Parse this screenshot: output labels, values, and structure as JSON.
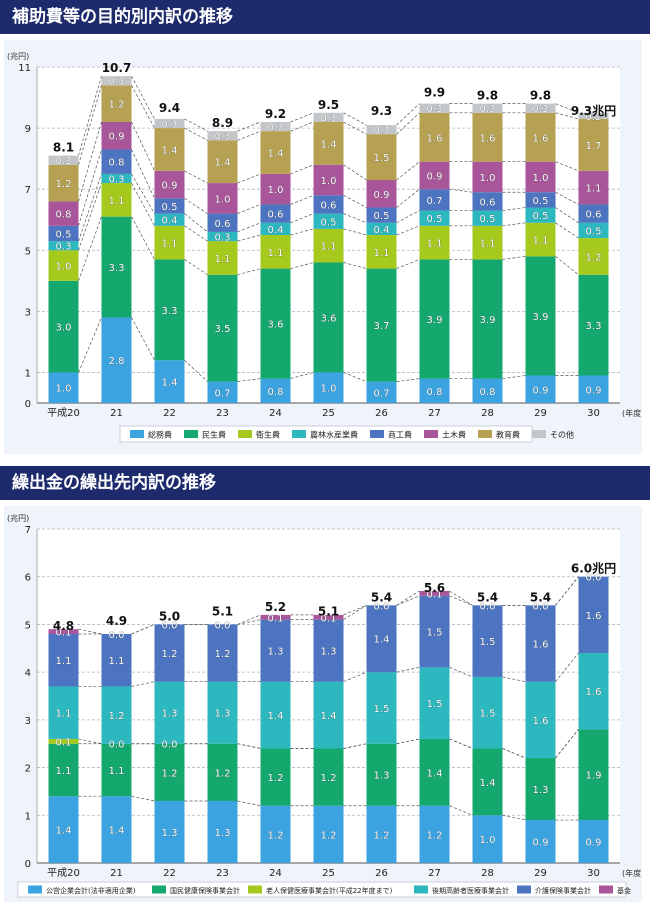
{
  "chart_data": [
    {
      "type": "bar",
      "title": "補助費等の目的別内訳の推移",
      "unit_label": "(兆円)",
      "x_unit_label": "(年度)",
      "ylim": [
        0,
        11
      ],
      "yticks": [
        "0",
        "1",
        "3",
        "5",
        "7",
        "9",
        "11"
      ],
      "ytick_values": [
        0,
        1,
        3,
        5,
        7,
        9,
        11
      ],
      "categories": [
        "平成20",
        "21",
        "22",
        "23",
        "24",
        "25",
        "26",
        "27",
        "28",
        "29",
        "30"
      ],
      "series": [
        {
          "name": "総務費",
          "color": "#3aa3e0",
          "values": [
            1.0,
            2.8,
            1.4,
            0.7,
            0.8,
            1.0,
            0.7,
            0.8,
            0.8,
            0.9,
            0.9
          ]
        },
        {
          "name": "民生費",
          "color": "#14a86e",
          "values": [
            3.0,
            3.3,
            3.3,
            3.5,
            3.6,
            3.6,
            3.7,
            3.9,
            3.9,
            3.9,
            3.3
          ]
        },
        {
          "name": "衛生費",
          "color": "#a5c91d",
          "values": [
            1.0,
            1.1,
            1.1,
            1.1,
            1.1,
            1.1,
            1.1,
            1.1,
            1.1,
            1.1,
            1.2
          ]
        },
        {
          "name": "農林水産業費",
          "color": "#2cb8be",
          "values": [
            0.3,
            0.3,
            0.4,
            0.3,
            0.4,
            0.5,
            0.4,
            0.5,
            0.5,
            0.5,
            0.5
          ]
        },
        {
          "name": "商工費",
          "color": "#4c74c0",
          "values": [
            0.5,
            0.8,
            0.5,
            0.6,
            0.6,
            0.6,
            0.5,
            0.7,
            0.6,
            0.5,
            0.6
          ]
        },
        {
          "name": "土木費",
          "color": "#a8559a",
          "values": [
            0.8,
            0.9,
            0.9,
            1.0,
            1.0,
            1.0,
            0.9,
            0.9,
            1.0,
            1.0,
            1.1
          ]
        },
        {
          "name": "教育費",
          "color": "#b5a151",
          "values": [
            1.2,
            1.2,
            1.4,
            1.4,
            1.4,
            1.4,
            1.5,
            1.6,
            1.6,
            1.6,
            1.7
          ]
        },
        {
          "name": "その他",
          "color": "#c3c6c9",
          "values": [
            0.3,
            0.3,
            0.3,
            0.3,
            0.3,
            0.3,
            0.3,
            0.3,
            0.3,
            0.3,
            0.2
          ]
        }
      ],
      "totals": [
        "8.1",
        "10.7",
        "9.4",
        "8.9",
        "9.2",
        "9.5",
        "9.3",
        "9.9",
        "9.8",
        "9.8",
        "9.3兆円"
      ],
      "total_values": [
        8.1,
        10.7,
        9.4,
        8.9,
        9.2,
        9.5,
        9.3,
        9.9,
        9.8,
        9.8,
        9.3
      ]
    },
    {
      "type": "bar",
      "title": "繰出金の繰出先内訳の推移",
      "unit_label": "(兆円)",
      "x_unit_label": "(年度)",
      "ylim": [
        0,
        7
      ],
      "yticks": [
        "0",
        "1",
        "2",
        "3",
        "4",
        "5",
        "6",
        "7"
      ],
      "ytick_values": [
        0,
        1,
        2,
        3,
        4,
        5,
        6,
        7
      ],
      "categories": [
        "平成20",
        "21",
        "22",
        "23",
        "24",
        "25",
        "26",
        "27",
        "28",
        "29",
        "30"
      ],
      "series": [
        {
          "name": "公営企業会計(法非適用企業)",
          "color": "#3aa3e0",
          "values": [
            1.4,
            1.4,
            1.3,
            1.3,
            1.2,
            1.2,
            1.2,
            1.2,
            1.0,
            0.9,
            0.9
          ]
        },
        {
          "name": "国民健康保険事業会計",
          "color": "#14a86e",
          "values": [
            1.1,
            1.1,
            1.2,
            1.2,
            1.2,
            1.2,
            1.3,
            1.4,
            1.4,
            1.3,
            1.9
          ]
        },
        {
          "name": "老人保健医療事業会計(平成22年度まで)",
          "color": "#a5c91d",
          "values": [
            0.1,
            0.0,
            0.0,
            0,
            0,
            0,
            0,
            0,
            0,
            0,
            0
          ]
        },
        {
          "name": "後期高齢者医療事業会計",
          "color": "#2cb8be",
          "values": [
            1.1,
            1.2,
            1.3,
            1.3,
            1.4,
            1.4,
            1.5,
            1.5,
            1.5,
            1.6,
            1.6
          ]
        },
        {
          "name": "介護保険事業会計",
          "color": "#4c74c0",
          "values": [
            1.1,
            1.1,
            1.2,
            1.2,
            1.3,
            1.3,
            1.4,
            1.5,
            1.5,
            1.6,
            1.6
          ]
        },
        {
          "name": "基金",
          "color": "#a8559a",
          "values": [
            0.1,
            0.0,
            0.0,
            0.0,
            0.1,
            0.1,
            0.0,
            0.1,
            0.0,
            0.0,
            0.0
          ]
        }
      ],
      "label_mask": [
        [
          1,
          1,
          1,
          1,
          1,
          1,
          1,
          1,
          1,
          1,
          1
        ],
        [
          1,
          1,
          1,
          1,
          1,
          1,
          1,
          1,
          1,
          1,
          1
        ],
        [
          1,
          1,
          1,
          0,
          0,
          0,
          0,
          0,
          0,
          0,
          0
        ],
        [
          1,
          1,
          1,
          1,
          1,
          1,
          1,
          1,
          1,
          1,
          1
        ],
        [
          1,
          1,
          1,
          1,
          1,
          1,
          1,
          1,
          1,
          1,
          1
        ],
        [
          1,
          1,
          1,
          1,
          1,
          1,
          1,
          1,
          1,
          1,
          1
        ]
      ],
      "totals": [
        "4.8",
        "4.9",
        "5.0",
        "5.1",
        "5.2",
        "5.1",
        "5.4",
        "5.6",
        "5.4",
        "5.4",
        "6.0兆円"
      ],
      "total_values": [
        4.8,
        4.9,
        5.0,
        5.1,
        5.2,
        5.1,
        5.4,
        5.6,
        5.4,
        5.4,
        6.0
      ]
    }
  ]
}
